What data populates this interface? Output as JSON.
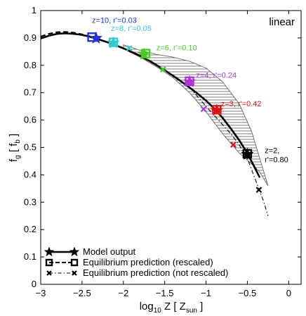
{
  "chart_data": {
    "type": "line",
    "corner_label": "linear",
    "xlabel": {
      "prefix": "log",
      "sub1": "10",
      "mid": " Z [ Z",
      "sub2": "sun",
      "suffix": " ]"
    },
    "ylabel": {
      "prefix": "f",
      "sub1": "g",
      "mid": " [ f",
      "sub2": "b",
      "suffix": " ]"
    },
    "xlim": [
      -3,
      0.15
    ],
    "ylim": [
      0,
      1
    ],
    "xticks": [
      -3,
      -2.5,
      -2,
      -1.5,
      -1,
      -0.5,
      0
    ],
    "xtick_labels": [
      "−3",
      "−2.5",
      "−2",
      "−1.5",
      "−1",
      "−0.5",
      "0"
    ],
    "yticks": [
      0,
      0.1,
      0.2,
      0.3,
      0.4,
      0.5,
      0.6,
      0.7,
      0.8,
      0.9,
      1
    ],
    "ytick_labels": [
      "0",
      "0.1",
      "0.2",
      "0.3",
      "0.4",
      "0.5",
      "0.6",
      "0.7",
      "0.8",
      "0.9",
      "1"
    ],
    "series": [
      {
        "name": "Model output",
        "style": "solid",
        "color": "#000000",
        "x": [
          -3.0,
          -2.9,
          -2.8,
          -2.7,
          -2.6,
          -2.5,
          -2.4,
          -2.3,
          -2.2,
          -2.1,
          -2.0,
          -1.9,
          -1.8,
          -1.7,
          -1.6,
          -1.5,
          -1.4,
          -1.3,
          -1.2,
          -1.1,
          -1.0,
          -0.9,
          -0.8,
          -0.7,
          -0.6,
          -0.5,
          -0.4,
          -0.35
        ],
        "y": [
          0.898,
          0.908,
          0.915,
          0.917,
          0.915,
          0.911,
          0.904,
          0.895,
          0.885,
          0.874,
          0.862,
          0.849,
          0.835,
          0.819,
          0.801,
          0.782,
          0.762,
          0.741,
          0.719,
          0.696,
          0.671,
          0.642,
          0.608,
          0.569,
          0.527,
          0.479,
          0.42,
          0.39
        ]
      },
      {
        "name": "Equilibrium prediction (rescaled)",
        "style": "dashed",
        "color": "#000000",
        "x": [
          -3.0,
          -2.9,
          -2.8,
          -2.7,
          -2.6,
          -2.5,
          -2.4,
          -2.33
        ],
        "y": [
          0.905,
          0.915,
          0.921,
          0.922,
          0.919,
          0.913,
          0.905,
          0.9
        ]
      },
      {
        "name": "Equilibrium prediction (not rescaled)",
        "style": "dashdot",
        "color": "#000000",
        "x": [
          -1.2,
          -1.0,
          -0.85,
          -0.7,
          -0.6,
          -0.5,
          -0.45,
          -0.4,
          -0.35,
          -0.3,
          -0.25
        ],
        "y": [
          0.72,
          0.65,
          0.6,
          0.55,
          0.51,
          0.46,
          0.42,
          0.38,
          0.34,
          0.3,
          0.25
        ]
      }
    ],
    "shaded_band": {
      "x": [
        -2.0,
        -1.8,
        -1.6,
        -1.4,
        -1.2,
        -1.0,
        -0.8,
        -0.6,
        -0.45,
        -0.35,
        -0.25
      ],
      "upper": [
        0.875,
        0.855,
        0.84,
        0.83,
        0.815,
        0.79,
        0.74,
        0.66,
        0.56,
        0.46,
        0.36
      ],
      "lower": [
        0.86,
        0.83,
        0.795,
        0.755,
        0.7,
        0.63,
        0.55,
        0.48,
        0.44,
        0.41,
        0.36
      ]
    },
    "points": [
      {
        "label": "z=10, r'=0.03",
        "color": "#2233dd",
        "model": [
          -2.33,
          0.899
        ],
        "rescaled": [
          -2.38,
          0.903
        ],
        "notrescaled": null
      },
      {
        "label": "z=8, r'=0.05",
        "color": "#33cccc",
        "model": [
          -2.12,
          0.882
        ],
        "rescaled": [
          -2.12,
          0.884
        ],
        "notrescaled": [
          -1.93,
          0.862
        ]
      },
      {
        "label": "z=6, r'=0.10",
        "color": "#44cc22",
        "model": [
          -1.75,
          0.84
        ],
        "rescaled": [
          -1.73,
          0.843
        ],
        "notrescaled": [
          -1.52,
          0.785
        ]
      },
      {
        "label": "z=4, r'=0.24",
        "color": "#aa33dd",
        "model": [
          -1.2,
          0.74
        ],
        "rescaled": [
          -1.2,
          0.742
        ],
        "notrescaled": [
          -1.03,
          0.64
        ]
      },
      {
        "label": "z=3, r'=0.42",
        "color": "#dd1111",
        "model": [
          -0.87,
          0.635
        ],
        "rescaled": [
          -0.87,
          0.638
        ],
        "notrescaled": [
          -0.67,
          0.51
        ]
      },
      {
        "label": "z=2, r'=0.80",
        "color": "#000000",
        "model": [
          -0.5,
          0.475
        ],
        "rescaled": [
          -0.5,
          0.477
        ],
        "notrescaled": [
          -0.36,
          0.345
        ]
      }
    ],
    "legend": {
      "placement": "bottom-left",
      "entries": [
        "Model output",
        "Equilibrium prediction (rescaled)",
        "Equilibrium prediction (not rescaled)"
      ]
    }
  }
}
